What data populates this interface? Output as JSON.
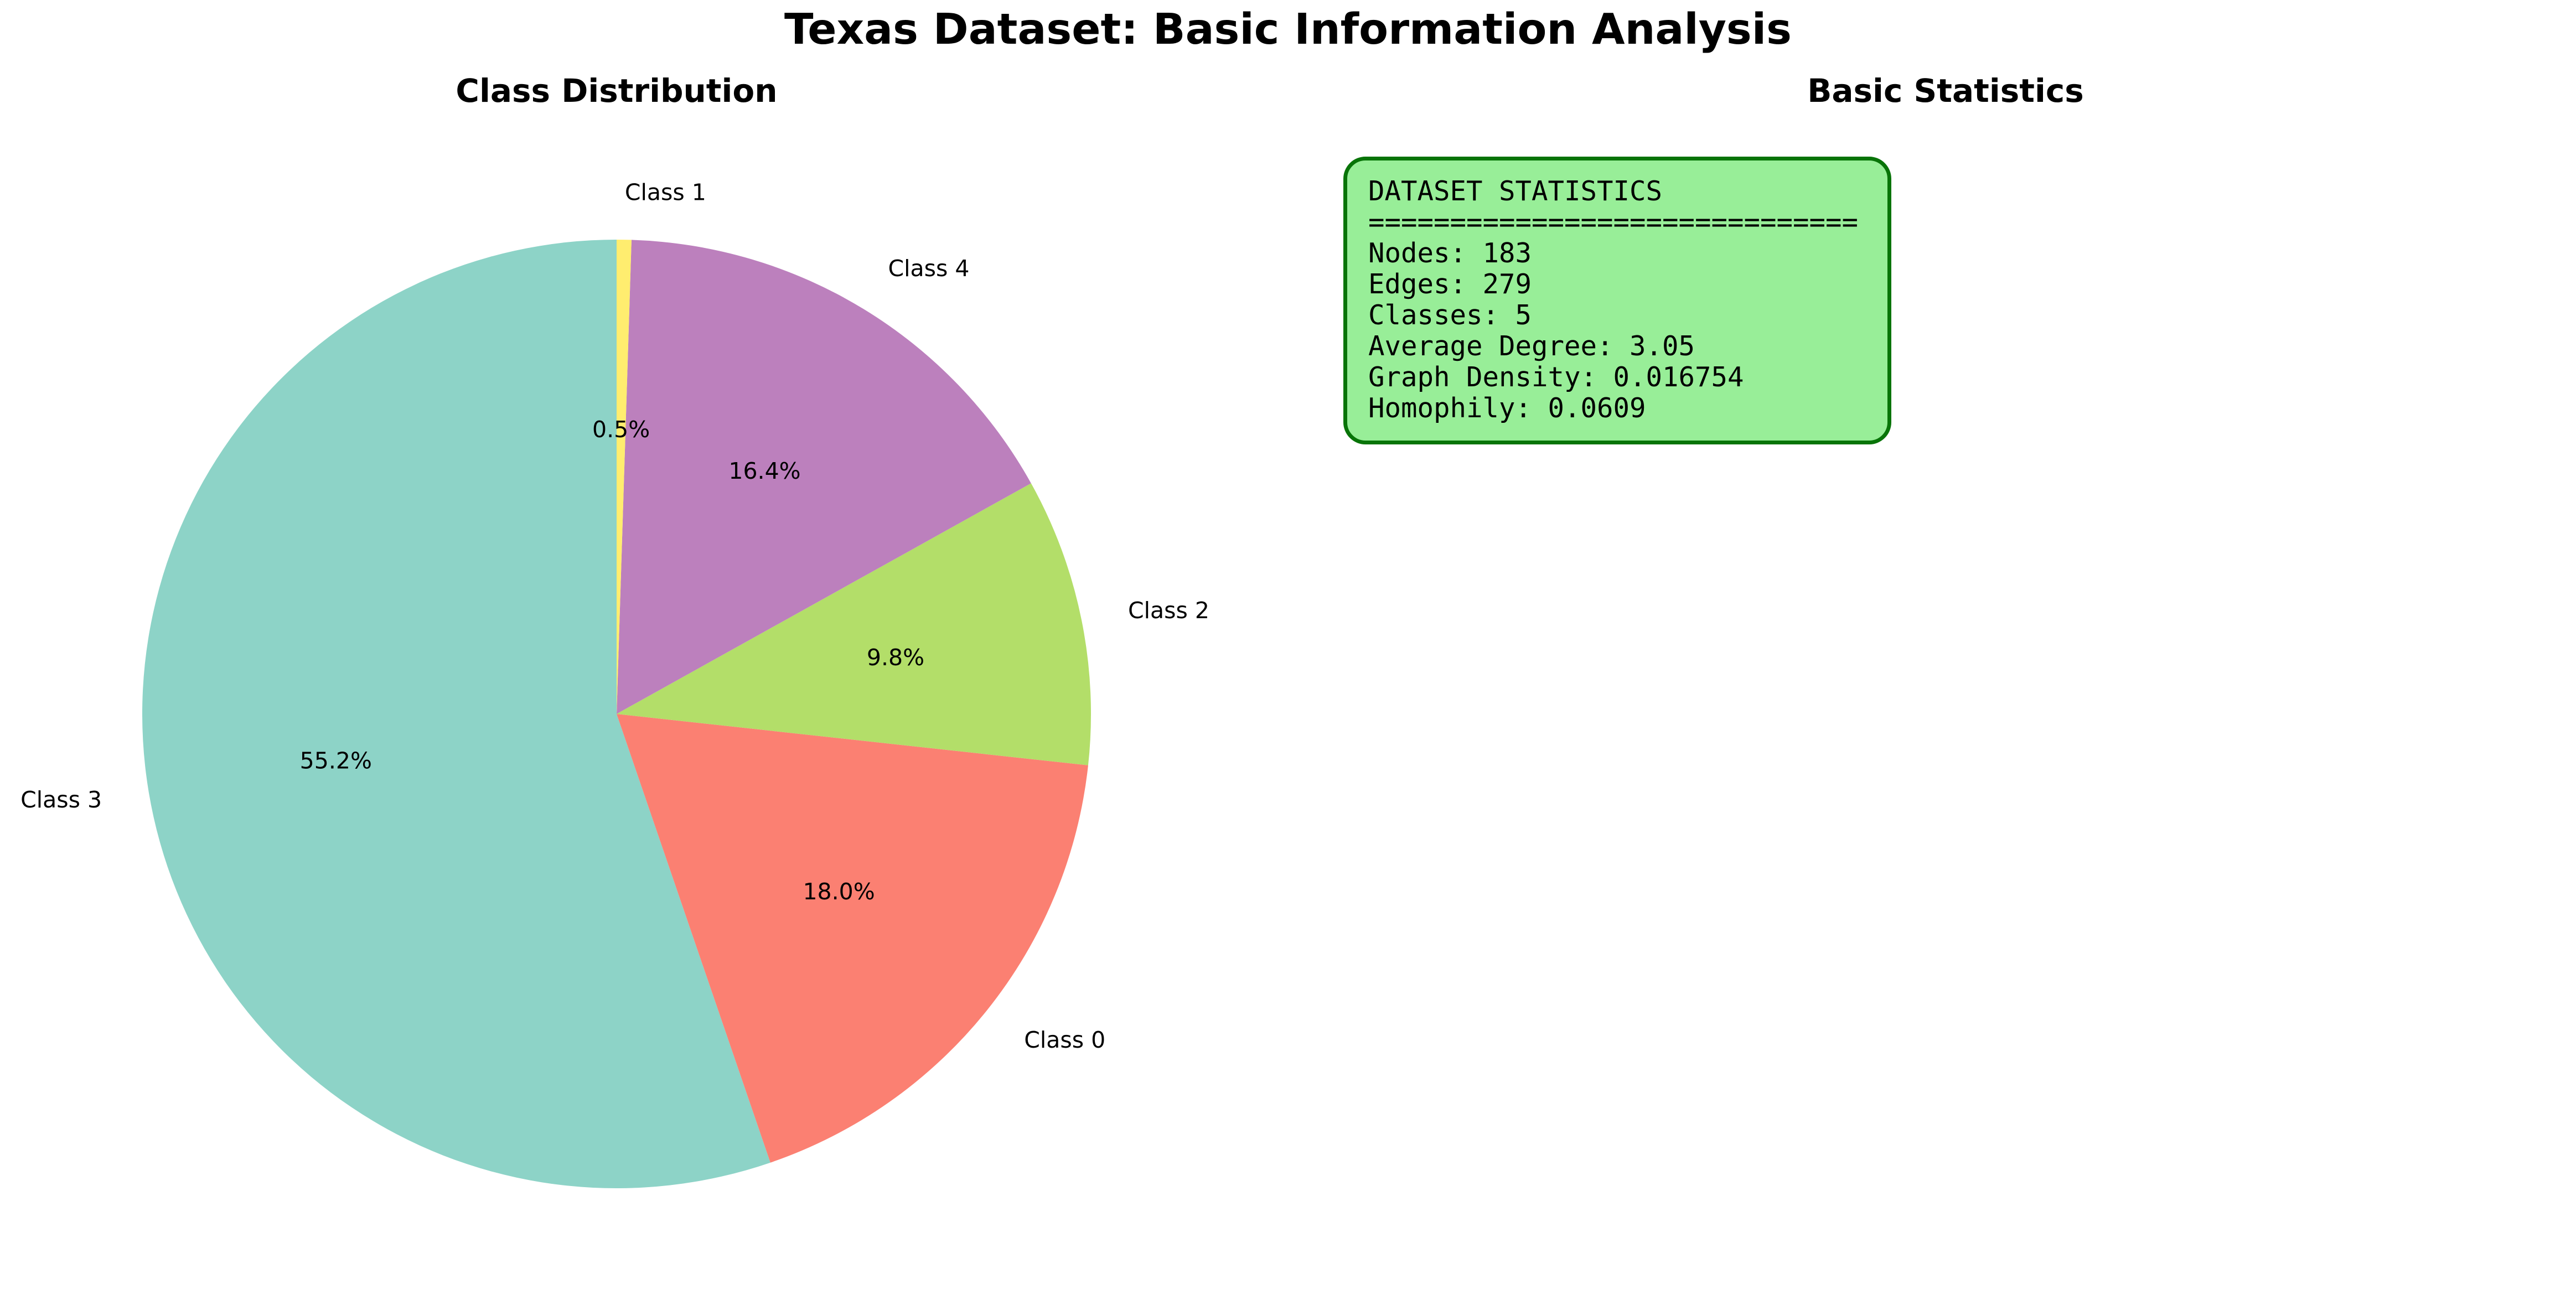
{
  "figure": {
    "title": "Texas Dataset: Basic Information Analysis"
  },
  "left_panel": {
    "title": "Class Distribution"
  },
  "right_panel": {
    "title": "Basic Statistics",
    "stats_lines": [
      "DATASET STATISTICS",
      "==============================",
      "Nodes: 183",
      "Edges: 279",
      "Classes: 5",
      "Average Degree: 3.05",
      "Graph Density: 0.016754",
      "Homophily: 0.0609"
    ],
    "box_fill": "#98ee98",
    "box_border": "#087408"
  },
  "chart_data": {
    "type": "pie",
    "title": "Class Distribution",
    "start_angle": 90,
    "direction": "counterclockwise",
    "categories": [
      "Class 0",
      "Class 1",
      "Class 2",
      "Class 3",
      "Class 4"
    ],
    "values": [
      18.0,
      0.5,
      9.8,
      55.2,
      16.4
    ],
    "value_labels": [
      "18.0%",
      "0.5%",
      "9.8%",
      "55.2%",
      "16.4%"
    ],
    "colors": [
      "#fb8072",
      "#ffed6f",
      "#b3de69",
      "#8dd3c7",
      "#bc80bd"
    ],
    "slice_order": [
      3,
      0,
      2,
      4,
      1
    ],
    "legend": "none"
  }
}
